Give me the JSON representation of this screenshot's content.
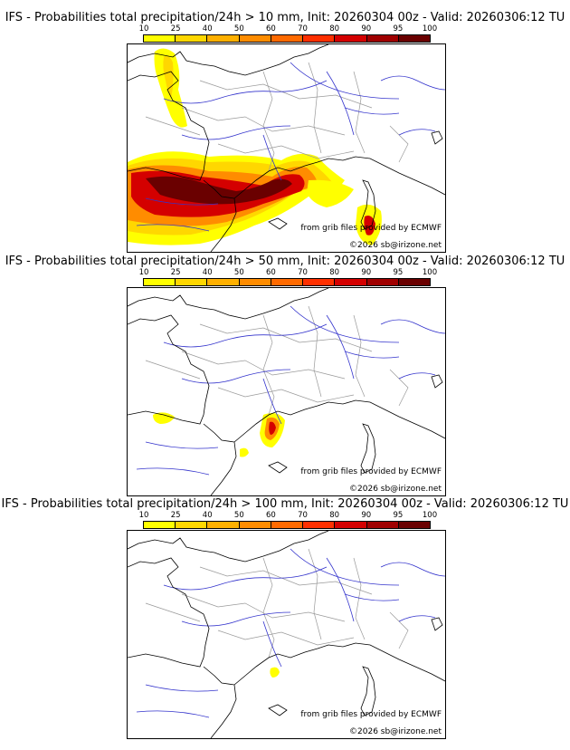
{
  "panels": [
    {
      "title": "IFS - Probabilities total precipitation/24h > 10 mm, Init: 20260304 00z - Valid: 20260306:12 TU",
      "threshold": "10 mm",
      "credit_line1": "from grib files provided by ECMWF",
      "credit_line2": "©2026 sb@irizone.net"
    },
    {
      "title": "IFS - Probabilities total precipitation/24h > 50 mm, Init: 20260304 00z - Valid: 20260306:12 TU",
      "threshold": "50 mm",
      "credit_line1": "from grib files provided by ECMWF",
      "credit_line2": "©2026 sb@irizone.net"
    },
    {
      "title": "IFS - Probabilities total precipitation/24h > 100 mm, Init: 20260304 00z - Valid: 20260306:12 TU",
      "threshold": "100 mm",
      "credit_line1": "from grib files provided by ECMWF",
      "credit_line2": "©2026 sb@irizone.net"
    }
  ],
  "legend": {
    "ticks": [
      "10",
      "25",
      "40",
      "50",
      "60",
      "70",
      "80",
      "90",
      "95",
      "100"
    ],
    "colors": [
      "#ffff00",
      "#ffd700",
      "#ffb000",
      "#ff8c00",
      "#ff6a00",
      "#ff3000",
      "#d40000",
      "#a00000",
      "#6a0000"
    ]
  },
  "map_colors": {
    "coast": "#000000",
    "rivers": "#3333cc",
    "borders": "#999999"
  }
}
